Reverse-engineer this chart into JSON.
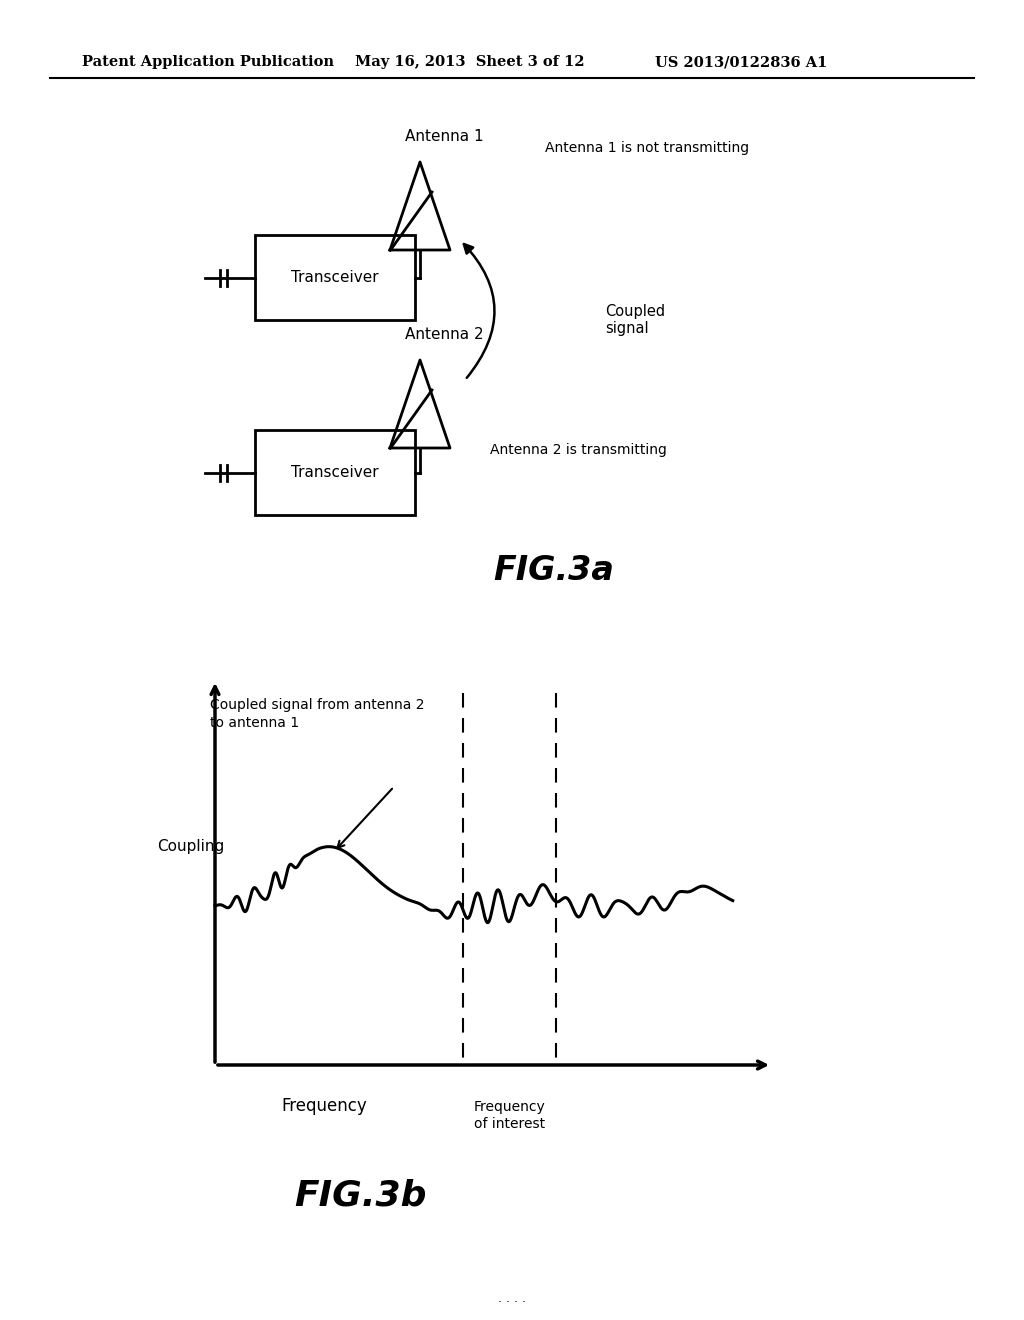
{
  "bg_color": "#ffffff",
  "header_left": "Patent Application Publication",
  "header_mid": "May 16, 2013  Sheet 3 of 12",
  "header_right": "US 2013/0122836 A1",
  "fig3a_label": "FIG.3a",
  "fig3b_label": "FIG.3b",
  "transceiver1_label": "Transceiver",
  "transceiver2_label": "Transceiver",
  "antenna1_label": "Antenna 1",
  "antenna2_label": "Antenna 2",
  "antenna1_note": "Antenna 1 is not transmitting",
  "antenna2_note": "Antenna 2 is transmitting",
  "coupled_signal_label": "Coupled\nsignal",
  "coupling_label": "Coupling",
  "frequency_label": "Frequency",
  "freq_of_interest_label": "Frequency\nof interest",
  "graph_annotation": "Coupled signal from antenna 2\nto antenna 1",
  "footer_dots": "· · · ·"
}
